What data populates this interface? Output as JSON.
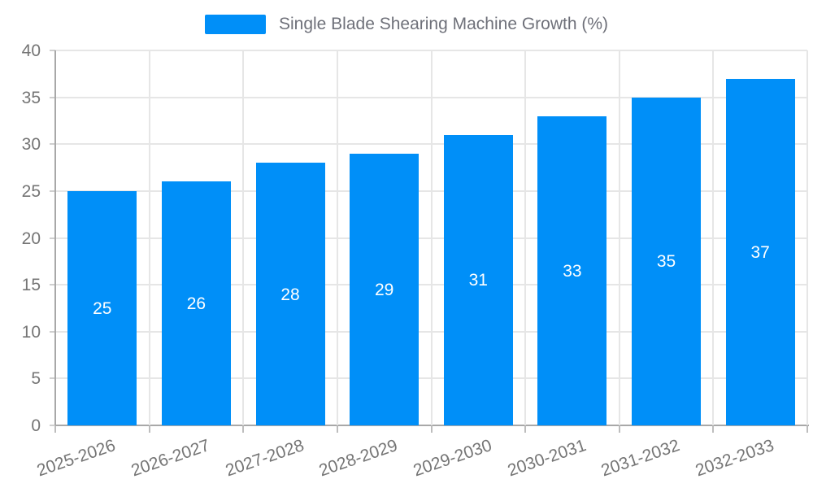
{
  "legend": {
    "label": "Single Blade Shearing Machine Growth (%)"
  },
  "colors": {
    "bar": "#008ff8",
    "axis_label": "#757575",
    "legend_text": "#6e7079",
    "grid": "#e6e6e6",
    "axis_line": "#a8a8a8",
    "value_label": "#ffffff"
  },
  "chart_data": {
    "type": "bar",
    "title": "",
    "xlabel": "",
    "ylabel": "",
    "categories": [
      "2025-2026",
      "2026-2027",
      "2027-2028",
      "2028-2029",
      "2029-2030",
      "2030-2031",
      "2031-2032",
      "2032-2033"
    ],
    "series": [
      {
        "name": "Single Blade Shearing Machine Growth (%)",
        "values": [
          25,
          26,
          28,
          29,
          31,
          33,
          35,
          37
        ]
      }
    ],
    "bar_labels_shown": true,
    "bar_label_position": "inside-middle",
    "ylim": [
      0,
      40
    ],
    "ytick_step": 5,
    "ytick_labels": [
      "0",
      "5",
      "10",
      "15",
      "20",
      "25",
      "30",
      "35",
      "40"
    ],
    "grid": true,
    "legend_position": "top-center",
    "x_label_rotation_deg": -19
  }
}
